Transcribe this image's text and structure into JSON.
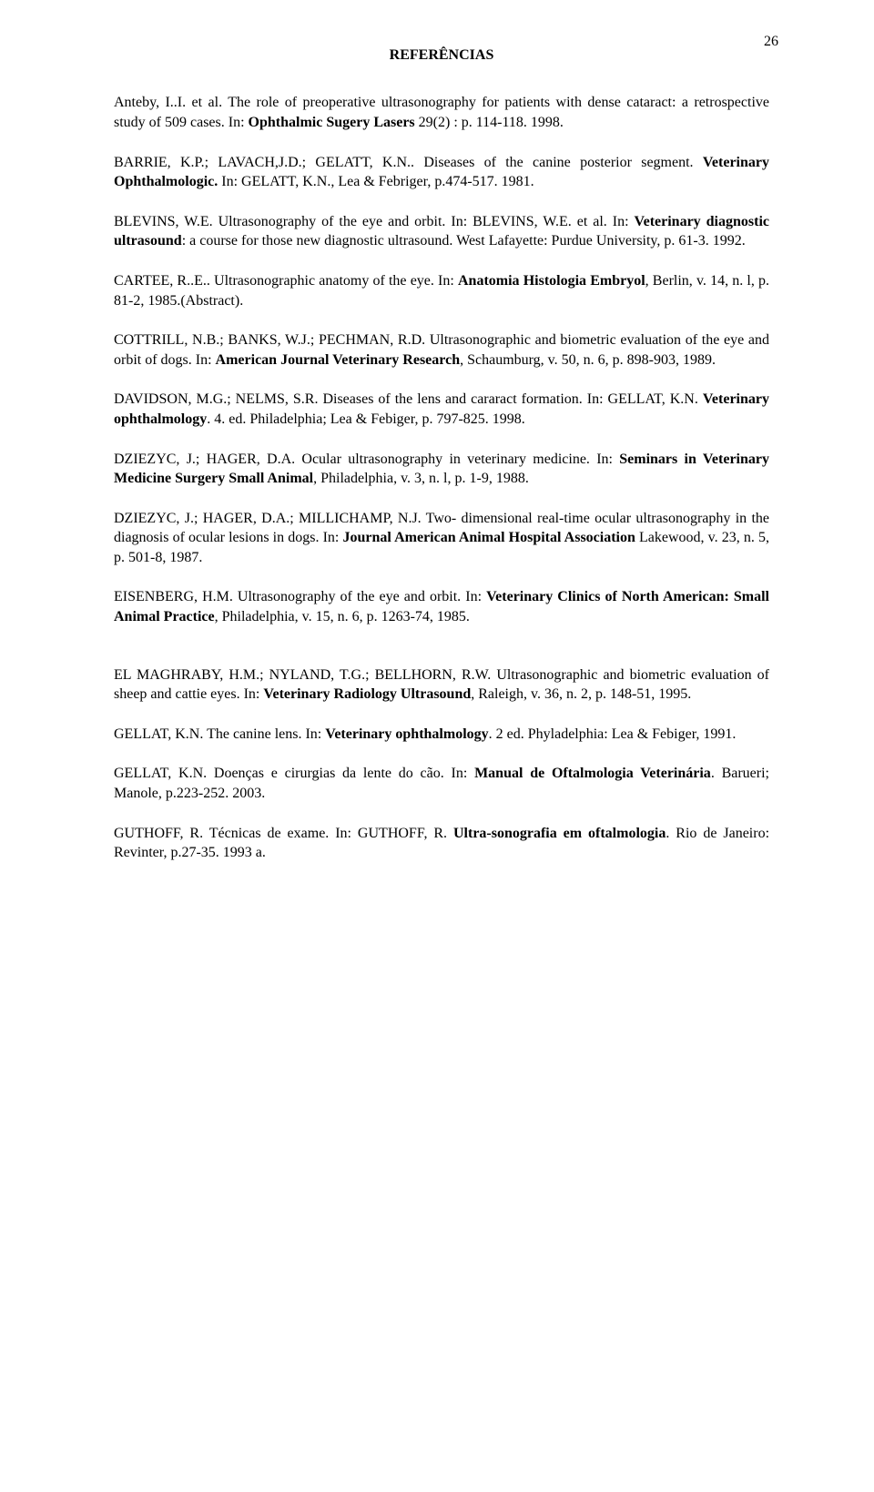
{
  "page_number": "26",
  "heading": "REFERÊNCIAS",
  "references": [
    {
      "text_parts": [
        {
          "t": "Anteby, I..I. et al. The role of preoperative ultrasonography for patients with dense cataract: a retrospective study of 509 cases. In: ",
          "b": false
        },
        {
          "t": "Ophthalmic Sugery Lasers",
          "b": true
        },
        {
          "t": " 29(2) : p. 114-118. 1998.",
          "b": false
        }
      ]
    },
    {
      "text_parts": [
        {
          "t": "BARRIE, K.P.; LAVACH,J.D.; GELATT, K.N.. Diseases of the canine posterior segment. ",
          "b": false
        },
        {
          "t": "Veterinary Ophthalmologic.",
          "b": true
        },
        {
          "t": " In: GELATT, K.N., Lea & Febriger, p.474-517. 1981.",
          "b": false
        }
      ]
    },
    {
      "text_parts": [
        {
          "t": "BLEVINS, W.E. Ultrasonography of the eye and orbit. In: BLEVINS, W.E. et al. In: ",
          "b": false
        },
        {
          "t": "Veterinary diagnostic ultrasound",
          "b": true
        },
        {
          "t": ": a course for those new diagnostic ultrasound. West Lafayette: Purdue University, p. 61-3. 1992.",
          "b": false
        }
      ]
    },
    {
      "text_parts": [
        {
          "t": "CARTEE, R..E.. Ultrasonographic anatomy of the eye. In:  ",
          "b": false
        },
        {
          "t": "Anatomia Histologia Embryol",
          "b": true
        },
        {
          "t": ", Berlin, v. 14, n. l, p. 81-2, 1985.(Abstract).",
          "b": false
        }
      ]
    },
    {
      "text_parts": [
        {
          "t": "COTTRILL, N.B.; BANKS, W.J.; PECHMAN, R.D. Ultrasonographic and biometric evaluation of the eye and orbit of dogs. In: ",
          "b": false
        },
        {
          "t": "American Journal Veterinary Research",
          "b": true
        },
        {
          "t": ", Schaumburg, v. 50, n. 6, p. 898-903, 1989.",
          "b": false
        }
      ]
    },
    {
      "text_parts": [
        {
          "t": "DAVIDSON, M.G.; NELMS, S.R. Diseases of the lens and cararact formation. In: GELLAT, K.N. ",
          "b": false
        },
        {
          "t": "Veterinary ophthalmology",
          "b": true
        },
        {
          "t": ". 4. ed. Philadelphia;  Lea & Febiger,  p. 797-825. 1998.",
          "b": false
        }
      ]
    },
    {
      "text_parts": [
        {
          "t": "DZIEZYC, J.; HAGER, D.A. Ocular ultrasonography in veterinary medicine. In: ",
          "b": false
        },
        {
          "t": "Seminars in Veterinary Medicine Surgery Small Animal",
          "b": true
        },
        {
          "t": ", Philadelphia, v. 3, n. l, p. 1-9, 1988.",
          "b": false
        }
      ]
    },
    {
      "text_parts": [
        {
          "t": "DZIEZYC, J.; HAGER, D.A.; MILLICHAMP, N.J. Two- dimensional real-time ocular ultrasonography in the diagnosis of ocular lesions in dogs. In: ",
          "b": false
        },
        {
          "t": "Journal American Animal Hospital Association",
          "b": true
        },
        {
          "t": " Lakewood, v. 23, n. 5, p. 501-8, 1987.",
          "b": false
        }
      ]
    },
    {
      "text_parts": [
        {
          "t": "EISENBERG, H.M. Ultrasonography of the eye and orbit. In: ",
          "b": false
        },
        {
          "t": "Veterinary Clinics of North American: Small Animal Practice",
          "b": true
        },
        {
          "t": ", Philadelphia, v. 15, n. 6, p. 1263-74, 1985.",
          "b": false
        }
      ]
    },
    {
      "extra_margin": true,
      "text_parts": [
        {
          "t": "EL MAGHRABY, H.M.; NYLAND, T.G.; BELLHORN, R.W. Ultrasonographic and biometric evaluation of sheep and cattie eyes. In: ",
          "b": false
        },
        {
          "t": "Veterinary Radiology Ultrasound",
          "b": true
        },
        {
          "t": ", Raleigh, v. 36, n. 2, p. 148-51, 1995.",
          "b": false
        }
      ]
    },
    {
      "text_parts": [
        {
          "t": "GELLAT, K.N. The canine lens. In: ",
          "b": false
        },
        {
          "t": "Veterinary ophthalmology",
          "b": true
        },
        {
          "t": ". 2 ed. Phyladelphia: Lea & Febiger, 1991.",
          "b": false
        }
      ]
    },
    {
      "text_parts": [
        {
          "t": "GELLAT, K.N. Doenças e cirurgias da lente do cão. In: ",
          "b": false
        },
        {
          "t": "Manual de Oftalmologia Veterinária",
          "b": true
        },
        {
          "t": ". Barueri; Manole,  p.223-252.  2003.",
          "b": false
        }
      ]
    },
    {
      "text_parts": [
        {
          "t": "GUTHOFF, R. Técnicas de exame. In: GUTHOFF, R. ",
          "b": false
        },
        {
          "t": "Ultra-sonografia em oftalmologia",
          "b": true
        },
        {
          "t": ". Rio de Janeiro: Revinter,  p.27-35.  1993 a.",
          "b": false
        }
      ]
    }
  ]
}
